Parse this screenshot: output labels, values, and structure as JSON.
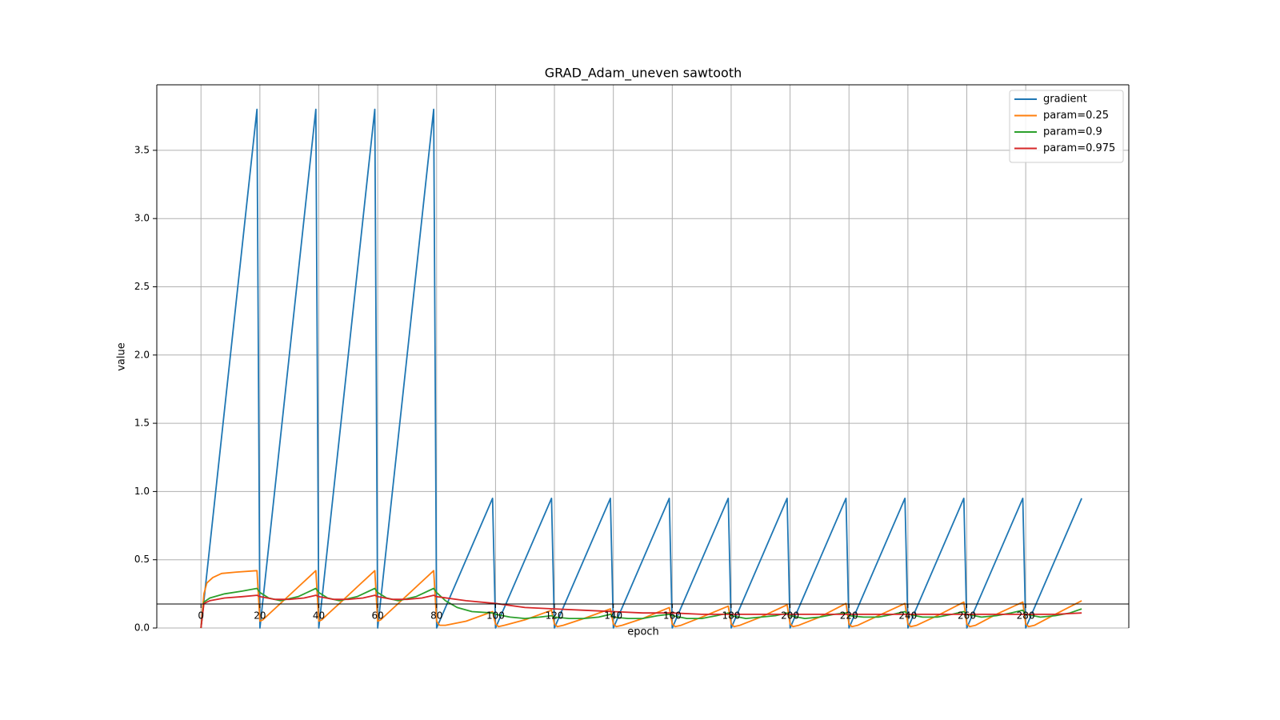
{
  "chart_data": {
    "type": "line",
    "title": "GRAD_Adam_uneven sawtooth",
    "xlabel": "epoch",
    "ylabel": "value",
    "xlim": [
      -15,
      315
    ],
    "ylim": [
      0,
      3.98
    ],
    "x_ticks": [
      0,
      20,
      40,
      60,
      80,
      100,
      120,
      140,
      160,
      180,
      200,
      220,
      240,
      260,
      280
    ],
    "y_ticks": [
      0.0,
      0.5,
      1.0,
      1.5,
      2.0,
      2.5,
      3.0,
      3.5
    ],
    "y_tick_labels": [
      "0.0",
      "0.5",
      "1.0",
      "1.5",
      "2.0",
      "2.5",
      "3.0",
      "3.5"
    ],
    "grid": true,
    "legend_position": "top-right",
    "series": [
      {
        "name": "gradient",
        "color": "#1f77b4",
        "points": [
          [
            0,
            0
          ],
          [
            19,
            3.8
          ],
          [
            20,
            0
          ],
          [
            39,
            3.8
          ],
          [
            40,
            0
          ],
          [
            59,
            3.8
          ],
          [
            60,
            0
          ],
          [
            79,
            3.8
          ],
          [
            80,
            0
          ],
          [
            99,
            0.95
          ],
          [
            100,
            0
          ],
          [
            119,
            0.95
          ],
          [
            120,
            0
          ],
          [
            139,
            0.95
          ],
          [
            140,
            0
          ],
          [
            159,
            0.95
          ],
          [
            160,
            0
          ],
          [
            179,
            0.95
          ],
          [
            180,
            0
          ],
          [
            199,
            0.95
          ],
          [
            200,
            0
          ],
          [
            219,
            0.95
          ],
          [
            220,
            0
          ],
          [
            239,
            0.95
          ],
          [
            240,
            0
          ],
          [
            259,
            0.95
          ],
          [
            260,
            0
          ],
          [
            279,
            0.95
          ],
          [
            280,
            0
          ],
          [
            299,
            0.95
          ]
        ]
      },
      {
        "name": "param=0.25",
        "color": "#ff7f0e",
        "points": [
          [
            0,
            0
          ],
          [
            1,
            0.25
          ],
          [
            2,
            0.33
          ],
          [
            4,
            0.37
          ],
          [
            7,
            0.4
          ],
          [
            12,
            0.41
          ],
          [
            19,
            0.42
          ],
          [
            20,
            0.05
          ],
          [
            21,
            0.06
          ],
          [
            23,
            0.1
          ],
          [
            28,
            0.2
          ],
          [
            34,
            0.32
          ],
          [
            39,
            0.42
          ],
          [
            40,
            0.05
          ],
          [
            41,
            0.06
          ],
          [
            43,
            0.1
          ],
          [
            48,
            0.2
          ],
          [
            54,
            0.32
          ],
          [
            59,
            0.42
          ],
          [
            60,
            0.05
          ],
          [
            61,
            0.06
          ],
          [
            63,
            0.1
          ],
          [
            68,
            0.2
          ],
          [
            74,
            0.32
          ],
          [
            79,
            0.42
          ],
          [
            80,
            0.05
          ],
          [
            81,
            0.02
          ],
          [
            83,
            0.02
          ],
          [
            90,
            0.05
          ],
          [
            99,
            0.12
          ],
          [
            100,
            0.03
          ],
          [
            101,
            0.01
          ],
          [
            103,
            0.02
          ],
          [
            110,
            0.06
          ],
          [
            119,
            0.13
          ],
          [
            120,
            0.03
          ],
          [
            121,
            0.01
          ],
          [
            123,
            0.02
          ],
          [
            130,
            0.07
          ],
          [
            139,
            0.14
          ],
          [
            140,
            0.03
          ],
          [
            141,
            0.01
          ],
          [
            143,
            0.02
          ],
          [
            150,
            0.07
          ],
          [
            159,
            0.15
          ],
          [
            160,
            0.03
          ],
          [
            161,
            0.01
          ],
          [
            163,
            0.02
          ],
          [
            170,
            0.08
          ],
          [
            179,
            0.16
          ],
          [
            180,
            0.03
          ],
          [
            181,
            0.01
          ],
          [
            183,
            0.02
          ],
          [
            190,
            0.08
          ],
          [
            199,
            0.17
          ],
          [
            200,
            0.03
          ],
          [
            201,
            0.01
          ],
          [
            203,
            0.02
          ],
          [
            210,
            0.08
          ],
          [
            219,
            0.18
          ],
          [
            220,
            0.03
          ],
          [
            221,
            0.01
          ],
          [
            223,
            0.02
          ],
          [
            230,
            0.09
          ],
          [
            239,
            0.18
          ],
          [
            240,
            0.03
          ],
          [
            241,
            0.01
          ],
          [
            243,
            0.02
          ],
          [
            250,
            0.09
          ],
          [
            259,
            0.19
          ],
          [
            260,
            0.03
          ],
          [
            261,
            0.01
          ],
          [
            263,
            0.02
          ],
          [
            270,
            0.1
          ],
          [
            279,
            0.19
          ],
          [
            280,
            0.03
          ],
          [
            281,
            0.01
          ],
          [
            283,
            0.02
          ],
          [
            290,
            0.1
          ],
          [
            299,
            0.2
          ]
        ]
      },
      {
        "name": "param=0.9",
        "color": "#2ca02c",
        "points": [
          [
            0,
            0
          ],
          [
            1,
            0.19
          ],
          [
            3,
            0.22
          ],
          [
            8,
            0.25
          ],
          [
            14,
            0.27
          ],
          [
            19,
            0.29
          ],
          [
            20,
            0.26
          ],
          [
            23,
            0.22
          ],
          [
            27,
            0.2
          ],
          [
            33,
            0.23
          ],
          [
            39,
            0.29
          ],
          [
            40,
            0.26
          ],
          [
            43,
            0.22
          ],
          [
            47,
            0.2
          ],
          [
            53,
            0.23
          ],
          [
            59,
            0.29
          ],
          [
            60,
            0.26
          ],
          [
            63,
            0.22
          ],
          [
            67,
            0.2
          ],
          [
            73,
            0.23
          ],
          [
            79,
            0.29
          ],
          [
            80,
            0.26
          ],
          [
            83,
            0.2
          ],
          [
            87,
            0.15
          ],
          [
            92,
            0.12
          ],
          [
            99,
            0.11
          ],
          [
            100,
            0.1
          ],
          [
            105,
            0.08
          ],
          [
            110,
            0.07
          ],
          [
            115,
            0.08
          ],
          [
            119,
            0.09
          ],
          [
            120,
            0.08
          ],
          [
            125,
            0.07
          ],
          [
            130,
            0.07
          ],
          [
            135,
            0.08
          ],
          [
            139,
            0.1
          ],
          [
            140,
            0.08
          ],
          [
            145,
            0.07
          ],
          [
            150,
            0.07
          ],
          [
            155,
            0.09
          ],
          [
            159,
            0.1
          ],
          [
            160,
            0.09
          ],
          [
            165,
            0.07
          ],
          [
            170,
            0.07
          ],
          [
            175,
            0.09
          ],
          [
            179,
            0.11
          ],
          [
            180,
            0.09
          ],
          [
            185,
            0.07
          ],
          [
            190,
            0.08
          ],
          [
            195,
            0.09
          ],
          [
            199,
            0.11
          ],
          [
            200,
            0.09
          ],
          [
            205,
            0.07
          ],
          [
            210,
            0.08
          ],
          [
            215,
            0.1
          ],
          [
            219,
            0.11
          ],
          [
            220,
            0.09
          ],
          [
            225,
            0.08
          ],
          [
            230,
            0.08
          ],
          [
            235,
            0.1
          ],
          [
            239,
            0.12
          ],
          [
            240,
            0.1
          ],
          [
            245,
            0.08
          ],
          [
            250,
            0.08
          ],
          [
            255,
            0.1
          ],
          [
            259,
            0.12
          ],
          [
            260,
            0.1
          ],
          [
            265,
            0.08
          ],
          [
            270,
            0.09
          ],
          [
            275,
            0.11
          ],
          [
            279,
            0.13
          ],
          [
            280,
            0.1
          ],
          [
            285,
            0.08
          ],
          [
            290,
            0.09
          ],
          [
            295,
            0.11
          ],
          [
            299,
            0.14
          ]
        ]
      },
      {
        "name": "param=0.975",
        "color": "#d62728",
        "points": [
          [
            0,
            0
          ],
          [
            1,
            0.18
          ],
          [
            3,
            0.2
          ],
          [
            8,
            0.22
          ],
          [
            14,
            0.23
          ],
          [
            19,
            0.24
          ],
          [
            20,
            0.23
          ],
          [
            25,
            0.21
          ],
          [
            30,
            0.21
          ],
          [
            35,
            0.22
          ],
          [
            39,
            0.24
          ],
          [
            40,
            0.23
          ],
          [
            45,
            0.21
          ],
          [
            50,
            0.21
          ],
          [
            55,
            0.22
          ],
          [
            59,
            0.24
          ],
          [
            60,
            0.23
          ],
          [
            65,
            0.21
          ],
          [
            70,
            0.21
          ],
          [
            75,
            0.22
          ],
          [
            79,
            0.24
          ],
          [
            80,
            0.23
          ],
          [
            90,
            0.2
          ],
          [
            100,
            0.18
          ],
          [
            110,
            0.15
          ],
          [
            120,
            0.14
          ],
          [
            130,
            0.13
          ],
          [
            140,
            0.12
          ],
          [
            150,
            0.11
          ],
          [
            160,
            0.11
          ],
          [
            170,
            0.1
          ],
          [
            180,
            0.1
          ],
          [
            190,
            0.1
          ],
          [
            200,
            0.1
          ],
          [
            210,
            0.1
          ],
          [
            220,
            0.1
          ],
          [
            230,
            0.1
          ],
          [
            240,
            0.1
          ],
          [
            250,
            0.1
          ],
          [
            260,
            0.1
          ],
          [
            270,
            0.1
          ],
          [
            280,
            0.1
          ],
          [
            290,
            0.1
          ],
          [
            299,
            0.11
          ]
        ]
      }
    ]
  }
}
